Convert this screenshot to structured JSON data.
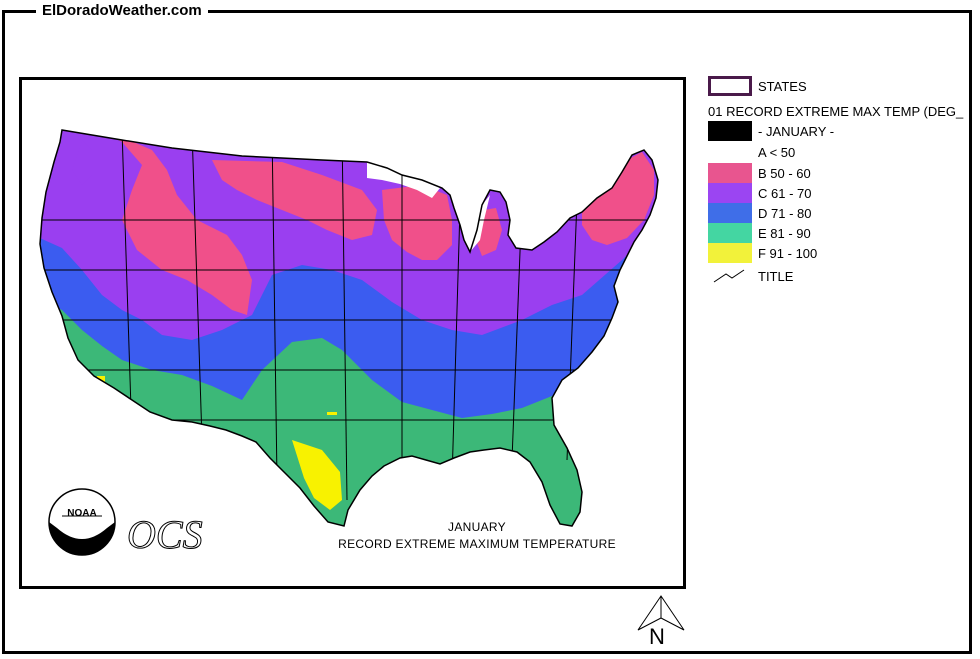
{
  "site": {
    "title": "ElDoradoWeather.com"
  },
  "map": {
    "caption_month": "JANUARY",
    "caption_title": "RECORD EXTREME  MAXIMUM TEMPERATURE",
    "noaa_logo_text": "NOAA",
    "ocs_logo_text": "OCS"
  },
  "legend": {
    "states_label": "STATES",
    "layer_title": "01 RECORD EXTREME MAX TEMP (DEG_",
    "month_label": "- JANUARY -",
    "classes": [
      {
        "label": "A < 50",
        "color": "#ffffff"
      },
      {
        "label": "B 50 - 60",
        "color": "#e8558f"
      },
      {
        "label": "C 61 - 70",
        "color": "#9b45f2"
      },
      {
        "label": "D 71 - 80",
        "color": "#3f6ee8"
      },
      {
        "label": "E 81 - 90",
        "color": "#44d6a2"
      },
      {
        "label": "F 91 - 100",
        "color": "#f2f23a"
      }
    ],
    "title_label": "TITLE"
  },
  "north_arrow": {
    "label": "N"
  },
  "colors": {
    "pink": "#f0508a",
    "purple": "#9a3ff0",
    "blue": "#3b5cf0",
    "green": "#3cb878",
    "yellow": "#f8f200",
    "states_outline": "#000000"
  }
}
